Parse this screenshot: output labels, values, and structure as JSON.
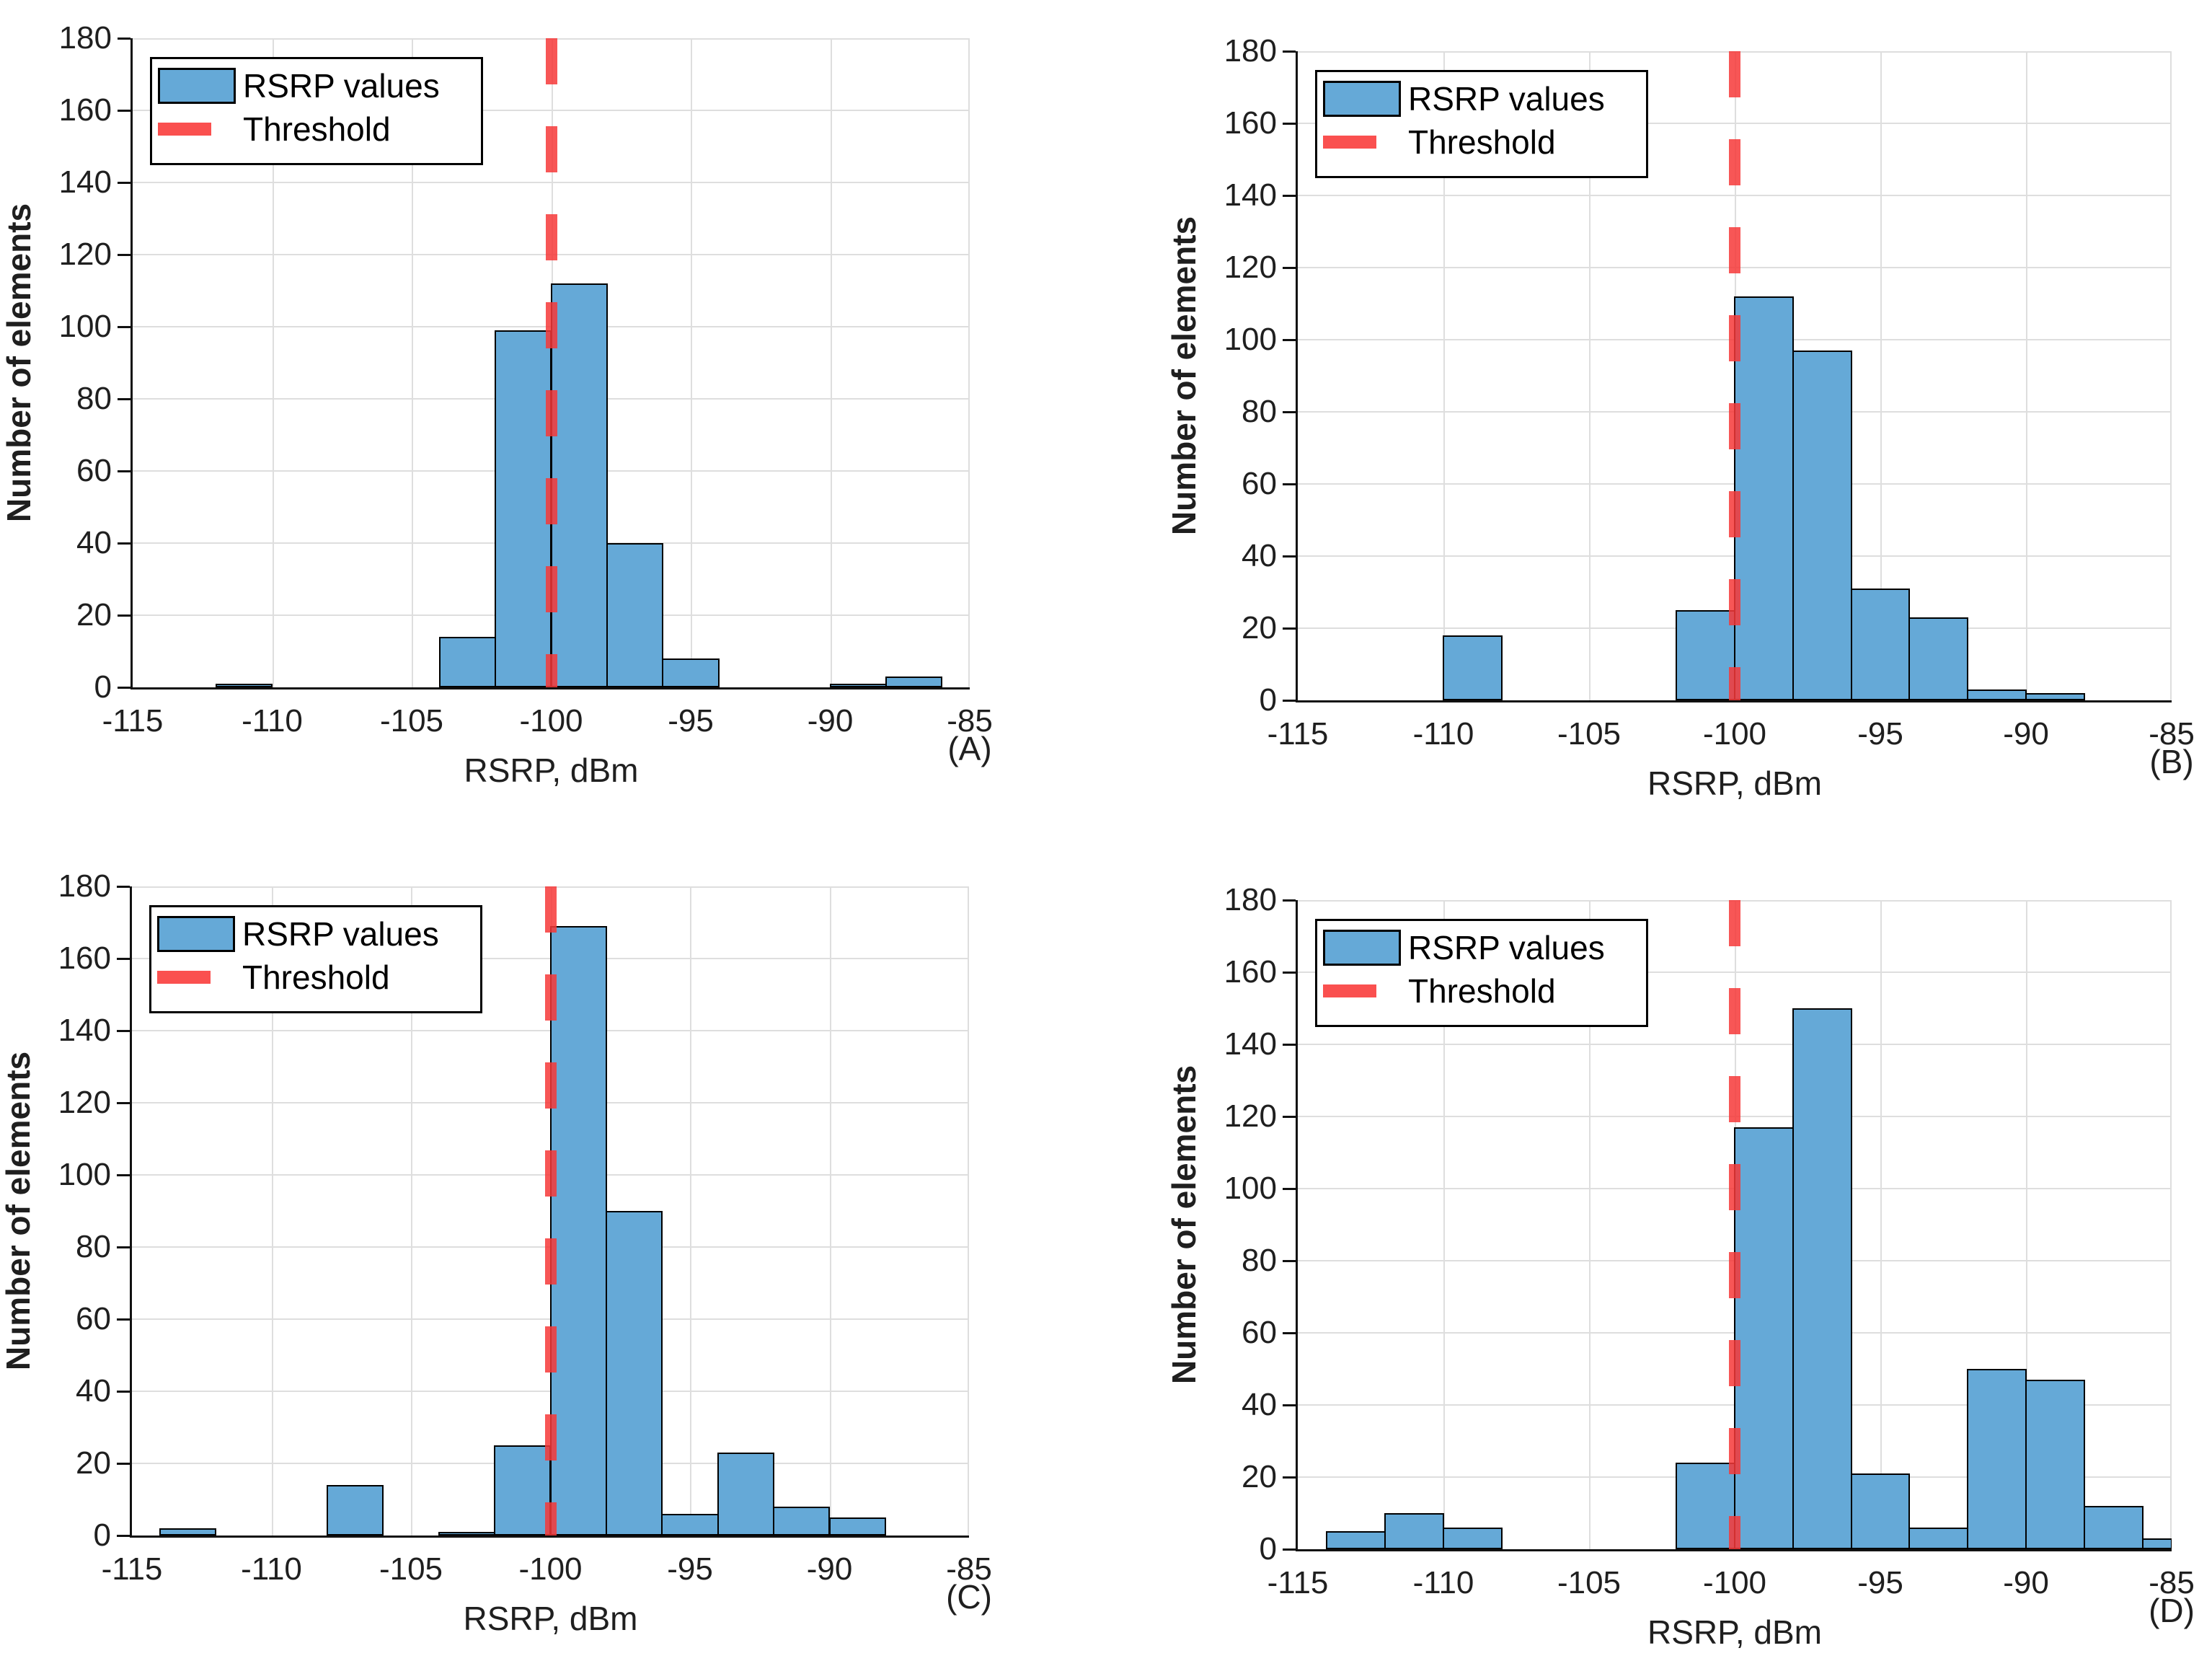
{
  "figure": {
    "background": "#ffffff",
    "colors": {
      "bar_fill": "#65A9D7",
      "bar_edge": "#000000",
      "threshold": "#F63838",
      "threshold_legend": "#FA504F",
      "grid": "#DEDEDE",
      "axis": "#111111",
      "text": "#1F1F1F"
    },
    "legend": {
      "items": [
        {
          "label": "RSRP values",
          "swatch": "bar-patch"
        },
        {
          "label": "Threshold",
          "swatch": "red-dash"
        }
      ]
    }
  },
  "chart_data": [
    {
      "type": "bar",
      "panel_label": "(A)",
      "xlabel": "RSRP, dBm",
      "ylabel": "Number of elements",
      "xlim": [
        -115,
        -85
      ],
      "ylim": [
        0,
        180
      ],
      "xticks": [
        -115,
        -110,
        -105,
        -100,
        -95,
        -90,
        -85
      ],
      "yticks": [
        0,
        20,
        40,
        60,
        80,
        100,
        120,
        140,
        160,
        180
      ],
      "grid": true,
      "legend_position": "top-left",
      "threshold_x": -100,
      "bins": [
        {
          "x0": -112,
          "x1": -110,
          "count": 1
        },
        {
          "x0": -104,
          "x1": -102,
          "count": 14
        },
        {
          "x0": -102,
          "x1": -100,
          "count": 99
        },
        {
          "x0": -100,
          "x1": -98,
          "count": 112
        },
        {
          "x0": -98,
          "x1": -96,
          "count": 40
        },
        {
          "x0": -96,
          "x1": -94,
          "count": 8
        },
        {
          "x0": -90,
          "x1": -88,
          "count": 1
        },
        {
          "x0": -88,
          "x1": -86,
          "count": 3
        }
      ]
    },
    {
      "type": "bar",
      "panel_label": "(B)",
      "xlabel": "RSRP, dBm",
      "ylabel": "Number of elements",
      "xlim": [
        -115,
        -85
      ],
      "ylim": [
        0,
        180
      ],
      "xticks": [
        -115,
        -110,
        -105,
        -100,
        -95,
        -90,
        -85
      ],
      "yticks": [
        0,
        20,
        40,
        60,
        80,
        100,
        120,
        140,
        160,
        180
      ],
      "grid": true,
      "legend_position": "top-left",
      "threshold_x": -100,
      "bins": [
        {
          "x0": -110,
          "x1": -108,
          "count": 18
        },
        {
          "x0": -102,
          "x1": -100,
          "count": 25
        },
        {
          "x0": -100,
          "x1": -98,
          "count": 112
        },
        {
          "x0": -98,
          "x1": -96,
          "count": 97
        },
        {
          "x0": -96,
          "x1": -94,
          "count": 31
        },
        {
          "x0": -94,
          "x1": -92,
          "count": 23
        },
        {
          "x0": -92,
          "x1": -90,
          "count": 3
        },
        {
          "x0": -90,
          "x1": -88,
          "count": 2
        }
      ]
    },
    {
      "type": "bar",
      "panel_label": "(C)",
      "xlabel": "RSRP, dBm",
      "ylabel": "Number of elements",
      "xlim": [
        -115,
        -85
      ],
      "ylim": [
        0,
        180
      ],
      "xticks": [
        -115,
        -110,
        -105,
        -100,
        -95,
        -90,
        -85
      ],
      "yticks": [
        0,
        20,
        40,
        60,
        80,
        100,
        120,
        140,
        160,
        180
      ],
      "grid": true,
      "legend_position": "top-left",
      "threshold_x": -100,
      "bins": [
        {
          "x0": -114,
          "x1": -112,
          "count": 2
        },
        {
          "x0": -108,
          "x1": -106,
          "count": 14
        },
        {
          "x0": -104,
          "x1": -102,
          "count": 1
        },
        {
          "x0": -102,
          "x1": -100,
          "count": 25
        },
        {
          "x0": -100,
          "x1": -98,
          "count": 169
        },
        {
          "x0": -98,
          "x1": -96,
          "count": 90
        },
        {
          "x0": -96,
          "x1": -94,
          "count": 6
        },
        {
          "x0": -94,
          "x1": -92,
          "count": 23
        },
        {
          "x0": -92,
          "x1": -90,
          "count": 8
        },
        {
          "x0": -90,
          "x1": -88,
          "count": 5
        }
      ]
    },
    {
      "type": "bar",
      "panel_label": "(D)",
      "xlabel": "RSRP, dBm",
      "ylabel": "Number of elements",
      "xlim": [
        -115,
        -85
      ],
      "ylim": [
        0,
        180
      ],
      "xticks": [
        -115,
        -110,
        -105,
        -100,
        -95,
        -90,
        -85
      ],
      "yticks": [
        0,
        20,
        40,
        60,
        80,
        100,
        120,
        140,
        160,
        180
      ],
      "grid": true,
      "legend_position": "top-left",
      "threshold_x": -100,
      "bins": [
        {
          "x0": -114,
          "x1": -112,
          "count": 5
        },
        {
          "x0": -112,
          "x1": -110,
          "count": 10
        },
        {
          "x0": -110,
          "x1": -108,
          "count": 6
        },
        {
          "x0": -102,
          "x1": -100,
          "count": 24
        },
        {
          "x0": -100,
          "x1": -98,
          "count": 117
        },
        {
          "x0": -98,
          "x1": -96,
          "count": 150
        },
        {
          "x0": -96,
          "x1": -94,
          "count": 21
        },
        {
          "x0": -94,
          "x1": -92,
          "count": 6
        },
        {
          "x0": -92,
          "x1": -90,
          "count": 50
        },
        {
          "x0": -90,
          "x1": -88,
          "count": 47
        },
        {
          "x0": -88,
          "x1": -86,
          "count": 12
        },
        {
          "x0": -86,
          "x1": -84,
          "count": 3
        }
      ]
    }
  ]
}
